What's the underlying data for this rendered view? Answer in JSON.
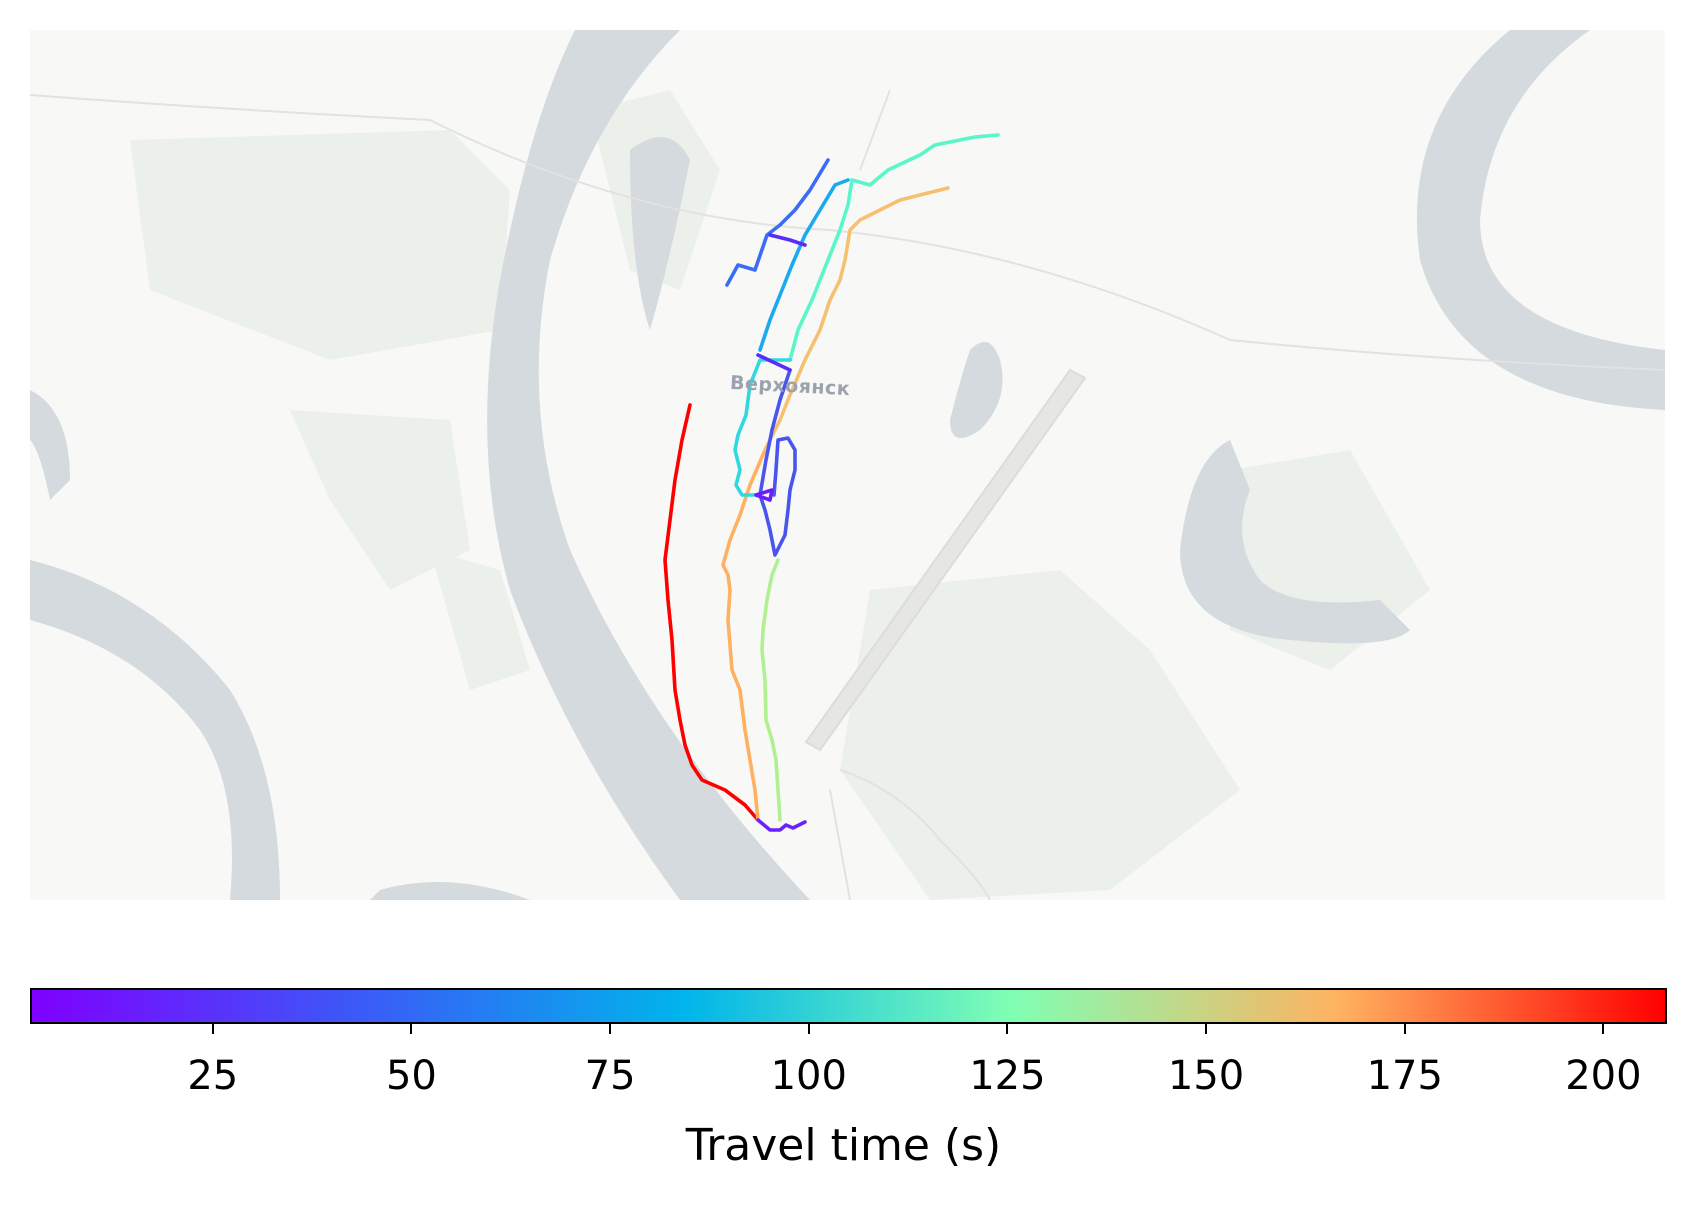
{
  "map": {
    "place_label": "Верхоянск",
    "colors": {
      "background": "#f8f8f6",
      "water": "#d4dadd",
      "vegetation": "#ecf0ea",
      "runway": "#e6e6e4"
    }
  },
  "colorbar": {
    "label": "Travel time (s)",
    "min": 2,
    "max": 208,
    "ticks": [
      25,
      50,
      75,
      100,
      125,
      150,
      175,
      200
    ],
    "colormap": "rainbow",
    "gradient_stops": [
      "#7f00ff",
      "#3b5af7",
      "#00b5eb",
      "#80ffb4",
      "#ffb360",
      "#ff0000"
    ]
  },
  "routes": [
    {
      "travel_time": 205,
      "color": "#ff0000"
    },
    {
      "travel_time": 158,
      "color": "#f5c070"
    },
    {
      "travel_time": 165,
      "color": "#ffb060"
    },
    {
      "travel_time": 115,
      "color": "#b0f090"
    },
    {
      "travel_time": 92,
      "color": "#5af5c8"
    },
    {
      "travel_time": 70,
      "color": "#30d8e0"
    },
    {
      "travel_time": 55,
      "color": "#1aaaf0"
    },
    {
      "travel_time": 40,
      "color": "#3a6cf4"
    },
    {
      "travel_time": 32,
      "color": "#4a55ee"
    },
    {
      "travel_time": 10,
      "color": "#6a20fc"
    }
  ]
}
